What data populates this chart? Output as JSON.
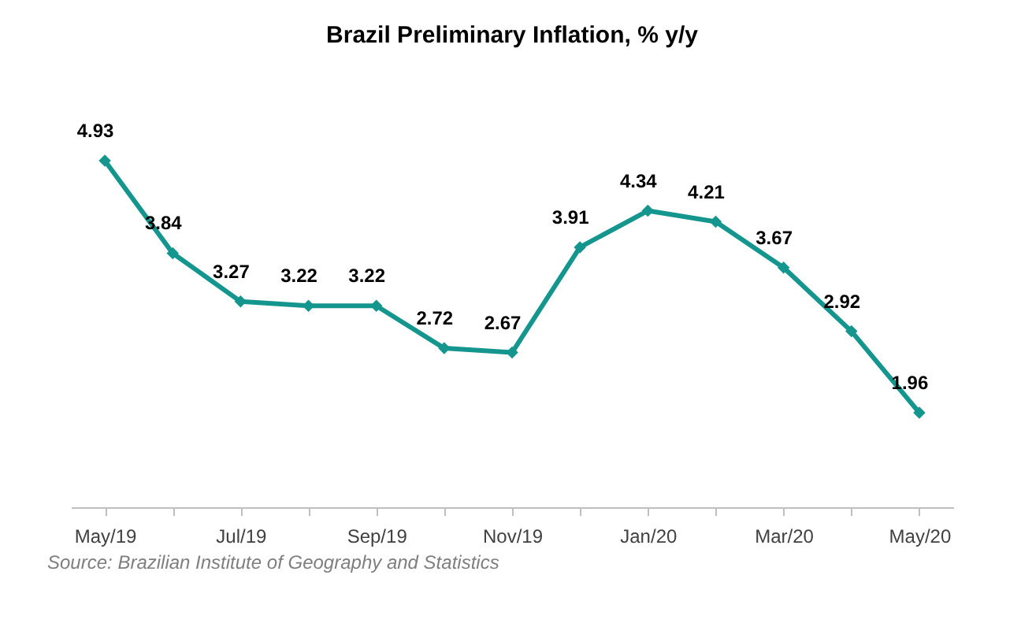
{
  "chart_data": {
    "type": "line",
    "title": "Brazil Preliminary Inflation, % y/y",
    "categories": [
      "May/19",
      null,
      "Jul/19",
      null,
      "Sep/19",
      null,
      "Nov/19",
      null,
      "Jan/20",
      null,
      "Mar/20",
      null,
      "May/20"
    ],
    "series": [
      {
        "color": "#14968f",
        "values": [
          4.93,
          3.84,
          3.27,
          3.22,
          3.22,
          2.72,
          2.67,
          3.91,
          4.34,
          4.21,
          3.67,
          2.92,
          1.96
        ]
      }
    ],
    "tick_labels": "x",
    "data_labels": true,
    "marker": "diamond",
    "line_style": "solid",
    "grid": false,
    "annotations": [
      "Source: Brazilian Institute of Geography and Statistics"
    ]
  }
}
